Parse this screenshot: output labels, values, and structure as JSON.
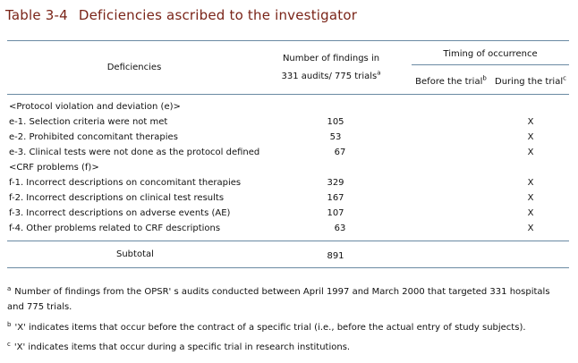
{
  "table": {
    "number": "Table 3-4",
    "title": "Deficiencies ascribed to the investigator",
    "headers": {
      "deficiencies": "Deficiencies",
      "findings_line1": "Number of findings in",
      "findings_line2": "331 audits/ 775 trials",
      "findings_mark": "a",
      "timing": "Timing of occurrence",
      "before": "Before the trial",
      "before_mark": "b",
      "during": "During the trial",
      "during_mark": "c"
    },
    "rows": [
      {
        "label": "<Protocol violation and deviation (e)>",
        "count": "",
        "before": "",
        "during": ""
      },
      {
        "label": "e-1. Selection criteria were not met",
        "count": "105",
        "before": "",
        "during": "X"
      },
      {
        "label": "e-2. Prohibited concomitant therapies",
        "count": "53",
        "before": "",
        "during": "X"
      },
      {
        "label": "e-3. Clinical tests were not done as the protocol defined",
        "count": "67",
        "before": "",
        "during": "X"
      },
      {
        "label": "<CRF problems (f)>",
        "count": "",
        "before": "",
        "during": ""
      },
      {
        "label": "f-1. Incorrect descriptions on concomitant therapies",
        "count": "329",
        "before": "",
        "during": "X"
      },
      {
        "label": "f-2. Incorrect descriptions on clinical test results",
        "count": "167",
        "before": "",
        "during": "X"
      },
      {
        "label": "f-3. Incorrect descriptions on adverse events (AE)",
        "count": "107",
        "before": "",
        "during": "X"
      },
      {
        "label": "f-4. Other problems related to CRF descriptions",
        "count": "63",
        "before": "",
        "during": "X"
      }
    ],
    "subtotal": {
      "label": "Subtotal",
      "count": "891"
    }
  },
  "footnotes": [
    {
      "mark": "a",
      "text": "Number of findings from the OPSR' s audits conducted between April 1997 and March 2000 that targeted 331 hospitals and 775 trials."
    },
    {
      "mark": "b",
      "text": "'X' indicates items that occur before the contract of a specific trial (i.e., before the actual entry of study subjects)."
    },
    {
      "mark": "c",
      "text": "'X' indicates items that occur during a specific trial in research institutions."
    }
  ]
}
